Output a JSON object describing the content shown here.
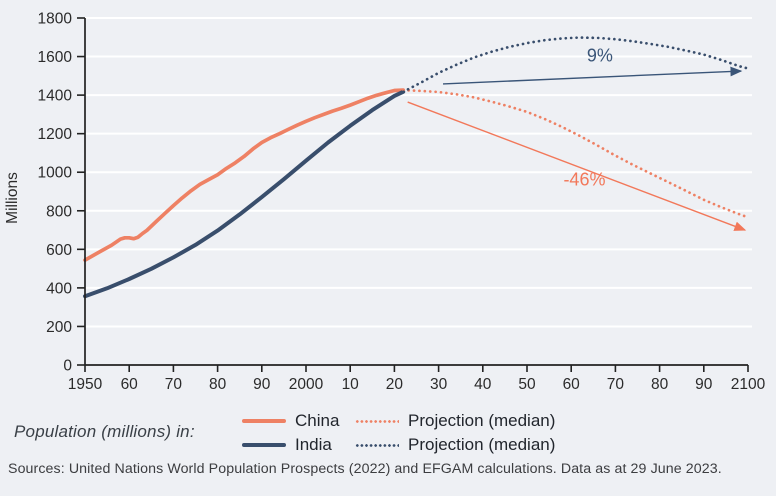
{
  "colors": {
    "background": "#eef0f4",
    "gridline": "#ffffff",
    "axis": "#222222",
    "tick_text": "#2b2b2b",
    "china": "#ee8164",
    "india": "#394e6c",
    "annotation_india": "#3a5578",
    "annotation_china": "#f2785a"
  },
  "legend": {
    "caption": "Population (millions) in:",
    "items": [
      {
        "id": "china",
        "label": "China",
        "style": "solid",
        "color": "#ee8164"
      },
      {
        "id": "china-projection",
        "label": "Projection (median)",
        "style": "dotted",
        "color": "#ee8164"
      },
      {
        "id": "india",
        "label": "India",
        "style": "solid",
        "color": "#394e6c"
      },
      {
        "id": "india-projection",
        "label": "Projection (median)",
        "style": "dotted",
        "color": "#394e6c"
      }
    ]
  },
  "source": "Sources: United Nations World Population Prospects (2022) and EFGAM calculations. Data as at 29 June 2023.",
  "chart_data": {
    "type": "line",
    "title": "",
    "xlabel": "",
    "ylabel": "Millions",
    "grid": "horizontal-white",
    "x_range": [
      1950,
      2100
    ],
    "y_range": [
      0,
      1800
    ],
    "yticks": [
      0,
      200,
      400,
      600,
      800,
      1000,
      1200,
      1400,
      1600,
      1800
    ],
    "xticks": [
      {
        "year": 1950,
        "label": "1950"
      },
      {
        "year": 1960,
        "label": "60"
      },
      {
        "year": 1970,
        "label": "70"
      },
      {
        "year": 1980,
        "label": "80"
      },
      {
        "year": 1990,
        "label": "90"
      },
      {
        "year": 2000,
        "label": "2000"
      },
      {
        "year": 2010,
        "label": "10"
      },
      {
        "year": 2020,
        "label": "20"
      },
      {
        "year": 2030,
        "label": "30"
      },
      {
        "year": 2040,
        "label": "40"
      },
      {
        "year": 2050,
        "label": "50"
      },
      {
        "year": 2060,
        "label": "60"
      },
      {
        "year": 2070,
        "label": "70"
      },
      {
        "year": 2080,
        "label": "80"
      },
      {
        "year": 2090,
        "label": "90"
      },
      {
        "year": 2100,
        "label": "2100"
      }
    ],
    "series": [
      {
        "id": "china-history",
        "name": "China",
        "style": "solid",
        "color": "#ee8164",
        "width": 3.7,
        "points": [
          [
            1950,
            544
          ],
          [
            1952,
            570
          ],
          [
            1954,
            596
          ],
          [
            1956,
            621
          ],
          [
            1957,
            637
          ],
          [
            1958,
            653
          ],
          [
            1959,
            660
          ],
          [
            1960,
            660
          ],
          [
            1961,
            655
          ],
          [
            1962,
            663
          ],
          [
            1963,
            682
          ],
          [
            1964,
            698
          ],
          [
            1966,
            742
          ],
          [
            1968,
            785
          ],
          [
            1970,
            827
          ],
          [
            1972,
            867
          ],
          [
            1974,
            904
          ],
          [
            1976,
            937
          ],
          [
            1978,
            962
          ],
          [
            1980,
            987
          ],
          [
            1982,
            1020
          ],
          [
            1984,
            1049
          ],
          [
            1986,
            1082
          ],
          [
            1988,
            1121
          ],
          [
            1990,
            1154
          ],
          [
            1992,
            1179
          ],
          [
            1994,
            1200
          ],
          [
            1996,
            1222
          ],
          [
            1998,
            1244
          ],
          [
            2000,
            1264
          ],
          [
            2002,
            1283
          ],
          [
            2004,
            1300
          ],
          [
            2006,
            1317
          ],
          [
            2008,
            1332
          ],
          [
            2010,
            1348
          ],
          [
            2012,
            1366
          ],
          [
            2014,
            1384
          ],
          [
            2016,
            1399
          ],
          [
            2018,
            1412
          ],
          [
            2020,
            1424
          ],
          [
            2022,
            1426
          ]
        ]
      },
      {
        "id": "india-history",
        "name": "India",
        "style": "solid",
        "color": "#394e6c",
        "width": 4,
        "points": [
          [
            1950,
            357
          ],
          [
            1955,
            398
          ],
          [
            1960,
            446
          ],
          [
            1965,
            499
          ],
          [
            1970,
            558
          ],
          [
            1975,
            623
          ],
          [
            1980,
            697
          ],
          [
            1985,
            781
          ],
          [
            1990,
            871
          ],
          [
            1995,
            964
          ],
          [
            2000,
            1060
          ],
          [
            2005,
            1154
          ],
          [
            2010,
            1241
          ],
          [
            2015,
            1322
          ],
          [
            2020,
            1396
          ],
          [
            2022,
            1417
          ]
        ]
      },
      {
        "id": "china-projection",
        "name": "Projection (median)",
        "style": "dotted",
        "color": "#ee8164",
        "width": 2.7,
        "points": [
          [
            2022,
            1426
          ],
          [
            2026,
            1422
          ],
          [
            2030,
            1416
          ],
          [
            2034,
            1404
          ],
          [
            2038,
            1388
          ],
          [
            2042,
            1366
          ],
          [
            2046,
            1341
          ],
          [
            2050,
            1313
          ],
          [
            2054,
            1276
          ],
          [
            2058,
            1234
          ],
          [
            2062,
            1188
          ],
          [
            2066,
            1138
          ],
          [
            2070,
            1086
          ],
          [
            2074,
            1038
          ],
          [
            2078,
            993
          ],
          [
            2082,
            948
          ],
          [
            2086,
            903
          ],
          [
            2090,
            857
          ],
          [
            2094,
            818
          ],
          [
            2098,
            782
          ],
          [
            2100,
            766
          ]
        ]
      },
      {
        "id": "india-projection",
        "name": "Projection (median)",
        "style": "dotted",
        "color": "#394e6c",
        "width": 2.7,
        "points": [
          [
            2022,
            1417
          ],
          [
            2026,
            1465
          ],
          [
            2030,
            1515
          ],
          [
            2034,
            1557
          ],
          [
            2038,
            1595
          ],
          [
            2042,
            1625
          ],
          [
            2046,
            1650
          ],
          [
            2050,
            1670
          ],
          [
            2054,
            1685
          ],
          [
            2058,
            1694
          ],
          [
            2062,
            1699
          ],
          [
            2066,
            1697
          ],
          [
            2070,
            1690
          ],
          [
            2074,
            1679
          ],
          [
            2078,
            1665
          ],
          [
            2082,
            1650
          ],
          [
            2086,
            1631
          ],
          [
            2090,
            1610
          ],
          [
            2094,
            1582
          ],
          [
            2098,
            1550
          ],
          [
            2100,
            1538
          ]
        ]
      }
    ],
    "annotations": [
      {
        "id": "india-change",
        "text": "9%",
        "color": "#3a5578",
        "text_at": [
          2066.5,
          1575
        ],
        "arrow_from": [
          2031,
          1458
        ],
        "arrow_to": [
          2098.4,
          1525
        ]
      },
      {
        "id": "china-change",
        "text": "-46%",
        "color": "#f2785a",
        "text_at": [
          2063,
          930
        ],
        "arrow_from": [
          2023,
          1364
        ],
        "arrow_to": [
          2099.3,
          700
        ]
      }
    ]
  }
}
